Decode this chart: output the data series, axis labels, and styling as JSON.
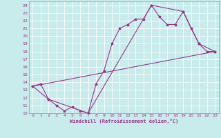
{
  "xlabel": "Windchill (Refroidissement éolien,°C)",
  "bg_color": "#c8ecec",
  "grid_color": "#ffffff",
  "line_color": "#993388",
  "xlim": [
    -0.5,
    23.5
  ],
  "ylim": [
    10,
    24.5
  ],
  "xticks": [
    0,
    1,
    2,
    3,
    4,
    5,
    6,
    7,
    8,
    9,
    10,
    11,
    12,
    13,
    14,
    15,
    16,
    17,
    18,
    19,
    20,
    21,
    22,
    23
  ],
  "yticks": [
    10,
    11,
    12,
    13,
    14,
    15,
    16,
    17,
    18,
    19,
    20,
    21,
    22,
    23,
    24
  ],
  "series1_x": [
    0,
    1,
    2,
    3,
    4,
    5,
    6,
    7,
    8,
    9,
    10,
    11,
    12,
    13,
    14,
    15,
    16,
    17,
    18,
    19,
    20,
    21,
    22,
    23
  ],
  "series1_y": [
    13.5,
    13.8,
    11.8,
    11.0,
    10.3,
    10.8,
    10.3,
    10.0,
    13.8,
    15.5,
    19.0,
    21.0,
    21.5,
    22.2,
    22.2,
    24.0,
    22.5,
    21.5,
    21.5,
    23.2,
    21.0,
    19.0,
    18.0,
    18.0
  ],
  "series2_x": [
    0,
    2,
    7,
    15,
    19,
    21,
    23
  ],
  "series2_y": [
    13.5,
    11.8,
    10.0,
    24.0,
    23.2,
    19.0,
    18.0
  ],
  "series3_x": [
    0,
    23
  ],
  "series3_y": [
    13.5,
    18.0
  ]
}
